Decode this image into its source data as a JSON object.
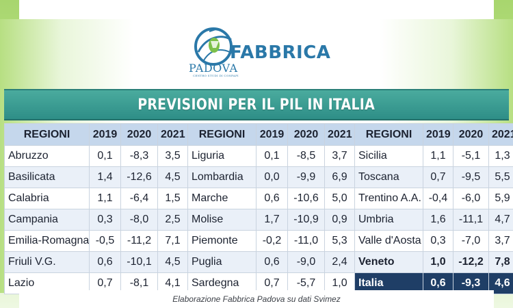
{
  "logo": {
    "word": "FABBRICA",
    "city": "PADOVA",
    "sub": "CENTRO STUDI DI CONFAPI"
  },
  "title": "PREVISIONI PER IL PIL IN ITALIA",
  "headers": [
    "REGIONI",
    "2019",
    "2020",
    "2021"
  ],
  "rows": [
    [
      [
        "Abruzzo",
        "0,1",
        "-8,3",
        "3,5"
      ],
      [
        "Liguria",
        "0,1",
        "-8,5",
        "3,7"
      ],
      [
        "Sicilia",
        "1,1",
        "-5,1",
        "1,3"
      ]
    ],
    [
      [
        "Basilicata",
        "1,4",
        "-12,6",
        "4,5"
      ],
      [
        "Lombardia",
        "0,0",
        "-9,9",
        "6,9"
      ],
      [
        "Toscana",
        "0,7",
        "-9,5",
        "5,5"
      ]
    ],
    [
      [
        "Calabria",
        "1,1",
        "-6,4",
        "1,5"
      ],
      [
        "Marche",
        "0,6",
        "-10,6",
        "5,0"
      ],
      [
        "Trentino A.A.",
        "-0,4",
        "-6,0",
        "5,9"
      ]
    ],
    [
      [
        "Campania",
        "0,3",
        "-8,0",
        "2,5"
      ],
      [
        "Molise",
        "1,7",
        "-10,9",
        "0,9"
      ],
      [
        "Umbria",
        "1,6",
        "-11,1",
        "4,7"
      ]
    ],
    [
      [
        "Emilia-Romagna",
        "-0,5",
        "-11,2",
        "7,1"
      ],
      [
        "Piemonte",
        "-0,2",
        "-11,0",
        "5,3"
      ],
      [
        "Valle d'Aosta",
        "0,3",
        "-7,0",
        "3,7"
      ]
    ],
    [
      [
        "Friuli V.G.",
        "0,6",
        "-10,1",
        "4,5"
      ],
      [
        "Puglia",
        "0,6",
        "-9,0",
        "2,4"
      ],
      [
        "Veneto",
        "1,0",
        "-12,2",
        "7,8"
      ]
    ],
    [
      [
        "Lazio",
        "0,7",
        "-8,1",
        "4,1"
      ],
      [
        "Sardegna",
        "0,7",
        "-5,7",
        "1,0"
      ],
      [
        "Italia",
        "0,6",
        "-9,3",
        "4,6"
      ]
    ]
  ],
  "caption": "Elaborazione Fabbrica Padova su dati Svimez",
  "colors": {
    "banner": "#2e8e87",
    "header": "#c5d7ec",
    "italia": "#1f3e66",
    "logo": "#2a78a8"
  }
}
